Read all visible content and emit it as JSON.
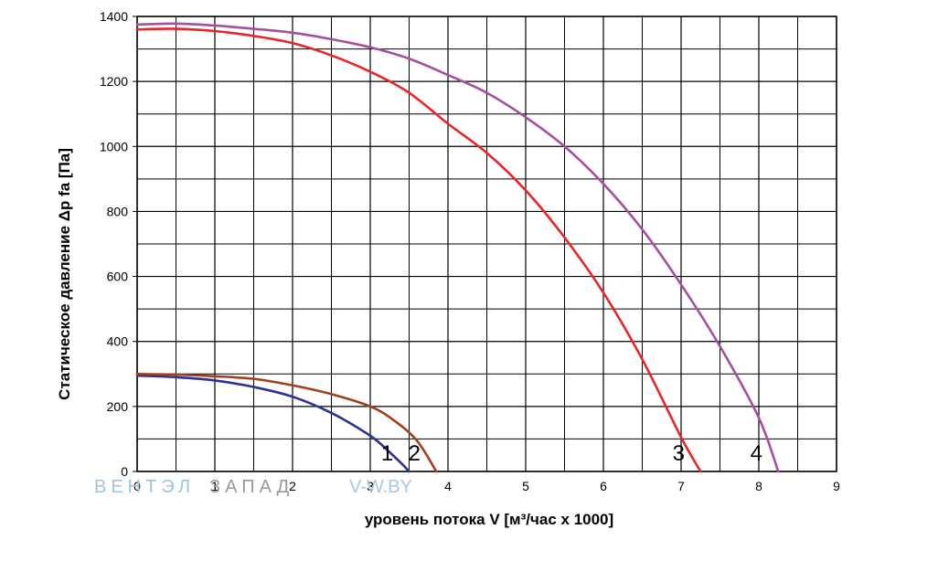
{
  "chart_data": {
    "type": "line",
    "title": "",
    "xlabel": "уровень потока  V [м³/час x 1000]",
    "ylabel": "Статическое давление  Δp fa [Па]",
    "xlim": [
      0,
      9
    ],
    "ylim": [
      0,
      1400
    ],
    "x_ticks": [
      0,
      1,
      2,
      3,
      4,
      5,
      6,
      7,
      8,
      9
    ],
    "x_tick_labels": [
      "0",
      "1",
      "2",
      "3",
      "4",
      "5",
      "6",
      "7",
      "8",
      "9"
    ],
    "x_minor_step": 0.5,
    "y_ticks": [
      0,
      200,
      400,
      600,
      800,
      1000,
      1200,
      1400
    ],
    "y_tick_labels": [
      "0",
      "200",
      "400",
      "600",
      "800",
      "1000",
      "1200",
      "1400"
    ],
    "y_minor_step": 100,
    "grid": true,
    "series": [
      {
        "name": "1",
        "color": "#2e3192",
        "x": [
          0,
          0.5,
          1.0,
          1.5,
          2.0,
          2.5,
          3.0,
          3.2,
          3.4,
          3.5
        ],
        "y": [
          295,
          290,
          280,
          260,
          230,
          180,
          110,
          70,
          25,
          0
        ]
      },
      {
        "name": "2",
        "color": "#a0401c",
        "x": [
          0,
          0.5,
          1.0,
          1.5,
          2.0,
          2.5,
          3.0,
          3.3,
          3.6,
          3.85
        ],
        "y": [
          300,
          298,
          293,
          285,
          265,
          238,
          200,
          158,
          95,
          0
        ]
      },
      {
        "name": "3",
        "color": "#e8262a",
        "x": [
          0,
          0.5,
          1.0,
          1.5,
          2.0,
          2.5,
          3.0,
          3.5,
          4.0,
          4.5,
          5.0,
          5.5,
          6.0,
          6.5,
          7.0,
          7.25
        ],
        "y": [
          1360,
          1362,
          1355,
          1340,
          1318,
          1280,
          1230,
          1165,
          1070,
          980,
          865,
          720,
          550,
          345,
          105,
          0
        ]
      },
      {
        "name": "4",
        "color": "#a5509f",
        "x": [
          0,
          0.5,
          1.0,
          1.5,
          2.0,
          2.5,
          3.0,
          3.5,
          4.0,
          4.5,
          5.0,
          5.5,
          6.0,
          6.5,
          7.0,
          7.5,
          8.0,
          8.25
        ],
        "y": [
          1375,
          1378,
          1372,
          1362,
          1350,
          1330,
          1305,
          1270,
          1220,
          1165,
          1090,
          1000,
          885,
          745,
          575,
          385,
          165,
          0
        ]
      }
    ],
    "curve_labels": [
      {
        "series": "1",
        "text": "1"
      },
      {
        "series": "2",
        "text": "2"
      },
      {
        "series": "3",
        "text": "3"
      },
      {
        "series": "4",
        "text": "4"
      }
    ]
  },
  "watermark": {
    "brand_part1": "ВЕНТЭЛ",
    "brand_part2": "ЗАПАД",
    "site": "V-W.BY"
  }
}
